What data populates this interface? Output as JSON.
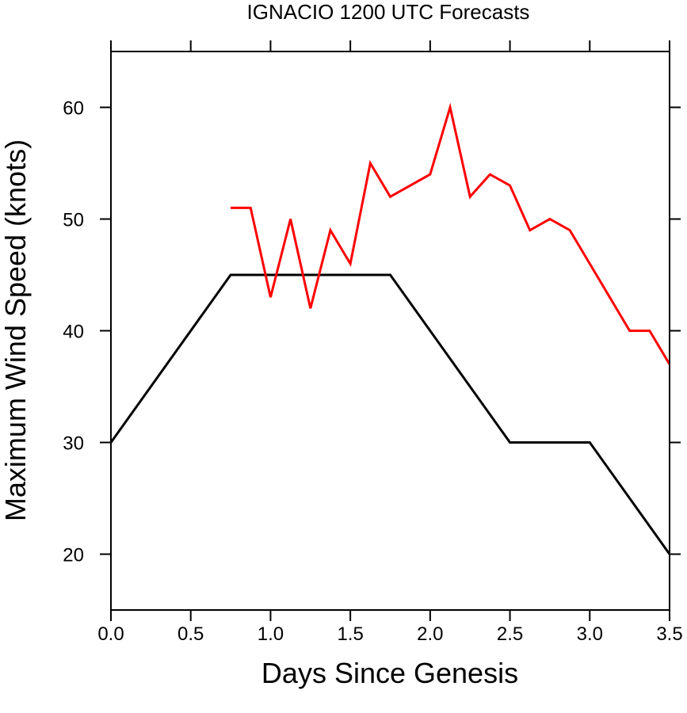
{
  "chart_data": {
    "type": "line",
    "title": "IGNACIO 1200 UTC Forecasts",
    "xlabel": "Days Since Genesis",
    "ylabel": "Maximum Wind Speed (knots)",
    "xlim": [
      0,
      3.5
    ],
    "ylim": [
      15,
      65
    ],
    "xticks": [
      {
        "value": 0.0,
        "label": "0.0"
      },
      {
        "value": 0.5,
        "label": "0.5"
      },
      {
        "value": 1.0,
        "label": "1.0"
      },
      {
        "value": 1.5,
        "label": "1.5"
      },
      {
        "value": 2.0,
        "label": "2.0"
      },
      {
        "value": 2.5,
        "label": "2.5"
      },
      {
        "value": 3.0,
        "label": "3.0"
      },
      {
        "value": 3.5,
        "label": "3.5"
      }
    ],
    "yticks": [
      {
        "value": 20,
        "label": "20"
      },
      {
        "value": 30,
        "label": "30"
      },
      {
        "value": 40,
        "label": "40"
      },
      {
        "value": 50,
        "label": "50"
      },
      {
        "value": 60,
        "label": "60"
      }
    ],
    "grid": false,
    "legend": "none",
    "series": [
      {
        "color": "#000000",
        "x": [
          0.0,
          0.75,
          1.75,
          2.5,
          3.0,
          3.5
        ],
        "y": [
          30,
          45,
          45,
          30,
          30,
          20
        ]
      },
      {
        "color": "#ff0000",
        "x": [
          0.75,
          0.875,
          1.0,
          1.125,
          1.25,
          1.375,
          1.5,
          1.625,
          1.75,
          2.0,
          2.125,
          2.25,
          2.375,
          2.5,
          2.625,
          2.75,
          2.875,
          3.0,
          3.125,
          3.25,
          3.375,
          3.5
        ],
        "y": [
          51,
          51,
          43,
          50,
          42,
          49,
          46,
          55,
          52,
          54,
          60,
          52,
          54,
          53,
          49,
          50,
          49,
          46,
          43,
          40,
          40,
          37
        ]
      }
    ]
  }
}
